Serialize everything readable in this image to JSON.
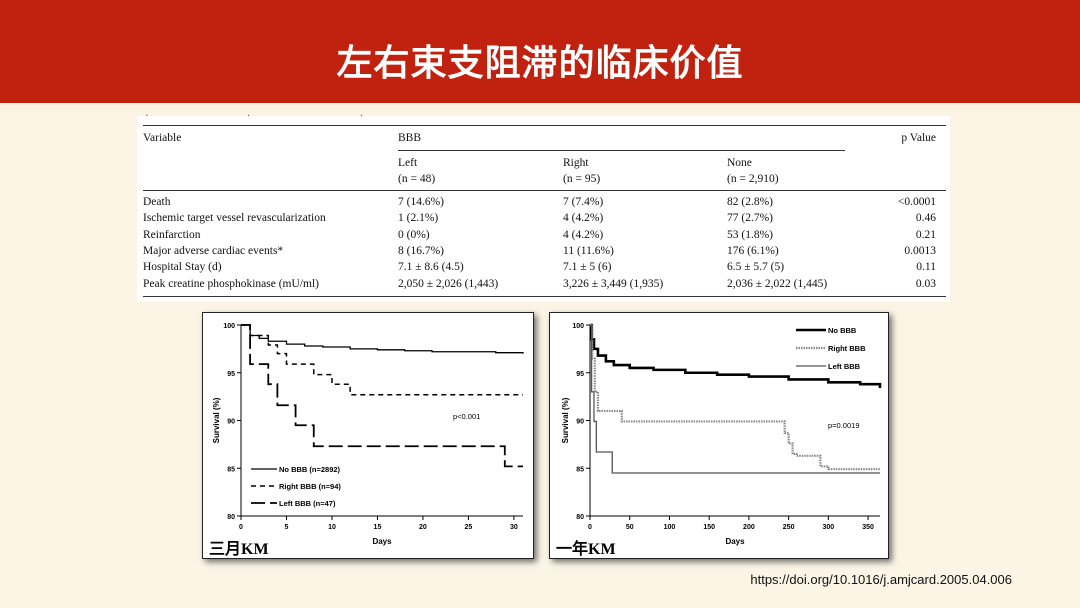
{
  "title": "左右束支阻滞的临床价值",
  "table": {
    "columns": {
      "variable": "Variable",
      "group": "BBB",
      "pvalue": "p Value",
      "left": "Left",
      "left_n": "(n = 48)",
      "right": "Right",
      "right_n": "(n = 95)",
      "none": "None",
      "none_n": "(n = 2,910)"
    },
    "rows": [
      {
        "variable": "Death",
        "left": "7 (14.6%)",
        "right": "7 (7.4%)",
        "none": "82 (2.8%)",
        "p": "<0.0001"
      },
      {
        "variable": "Ischemic target vessel revascularization",
        "left": "1 (2.1%)",
        "right": "4 (4.2%)",
        "none": "77 (2.7%)",
        "p": "0.46"
      },
      {
        "variable": "Reinfarction",
        "left": "0 (0%)",
        "right": "4 (4.2%)",
        "none": "53 (1.8%)",
        "p": "0.21"
      },
      {
        "variable": "Major adverse cardiac events*",
        "left": "8 (16.7%)",
        "right": "11 (11.6%)",
        "none": "176 (6.1%)",
        "p": "0.0013"
      },
      {
        "variable": "Hospital Stay (d)",
        "left": "7.1 ± 8.6 (4.5)",
        "right": "7.1 ± 5 (6)",
        "none": "6.5 ± 5.7 (5)",
        "p": "0.11"
      },
      {
        "variable": "Peak creatine phosphokinase (mU/ml)",
        "left": "2,050 ± 2,026 (1,443)",
        "right": "3,226 ± 3,449 (1,935)",
        "none": "2,036 ± 2,022 (1,445)",
        "p": "0.03"
      }
    ]
  },
  "chart_data": [
    {
      "type": "line",
      "caption": "三月KM",
      "xlabel": "Days",
      "ylabel": "Survival (%)",
      "xlim": [
        0,
        31
      ],
      "ylim": [
        80,
        100
      ],
      "xticks": [
        0,
        5,
        10,
        15,
        20,
        25,
        30
      ],
      "yticks": [
        80,
        85,
        90,
        95,
        100
      ],
      "annotation": "p<0.001",
      "legend_position": "bottom-left",
      "series": [
        {
          "name": "No BBB (n=2892)",
          "style": "solid",
          "color": "#000000",
          "x": [
            0,
            1,
            2,
            3,
            5,
            7,
            9,
            12,
            15,
            18,
            21,
            25,
            28,
            30,
            31
          ],
          "y": [
            100,
            98.9,
            98.6,
            98.3,
            98.0,
            97.8,
            97.7,
            97.5,
            97.4,
            97.3,
            97.2,
            97.2,
            97.1,
            97.1,
            97.0
          ]
        },
        {
          "name": "Right BBB (n=94)",
          "style": "dashed",
          "color": "#000000",
          "x": [
            0,
            1,
            2,
            3,
            4,
            5,
            6,
            7,
            8,
            9,
            10,
            11,
            12,
            31
          ],
          "y": [
            100,
            98.9,
            98.9,
            97.9,
            97.0,
            95.9,
            95.9,
            95.9,
            94.8,
            94.8,
            93.8,
            93.8,
            92.7,
            92.7
          ]
        },
        {
          "name": "Left BBB (n=47)",
          "style": "longdash",
          "color": "#000000",
          "x": [
            0,
            1,
            2,
            3,
            4,
            5,
            6,
            7,
            8,
            20,
            24,
            29,
            30,
            31
          ],
          "y": [
            100,
            95.9,
            95.9,
            93.8,
            91.6,
            91.6,
            89.5,
            89.5,
            87.3,
            87.3,
            87.3,
            85.2,
            85.2,
            85.2
          ]
        }
      ]
    },
    {
      "type": "line",
      "caption": "一年KM",
      "xlabel": "Days",
      "ylabel": "Survival (%)",
      "xlim": [
        0,
        365
      ],
      "ylim": [
        80,
        100
      ],
      "xticks": [
        0,
        50,
        100,
        150,
        200,
        250,
        300,
        350
      ],
      "yticks": [
        80,
        85,
        90,
        95,
        100
      ],
      "annotation": "p=0.0019",
      "legend_position": "top-right",
      "series": [
        {
          "name": "No BBB",
          "style": "thick",
          "color": "#000000",
          "x": [
            0,
            2,
            5,
            10,
            20,
            30,
            50,
            80,
            120,
            160,
            200,
            250,
            300,
            340,
            360,
            365
          ],
          "y": [
            100,
            98.5,
            97.5,
            96.8,
            96.2,
            95.8,
            95.5,
            95.3,
            95.0,
            94.8,
            94.6,
            94.3,
            94.0,
            93.8,
            93.8,
            93.4
          ]
        },
        {
          "name": "Right BBB",
          "style": "dotted-gray",
          "color": "#888888",
          "x": [
            0,
            3,
            6,
            10,
            40,
            100,
            240,
            245,
            250,
            255,
            260,
            290,
            300,
            365
          ],
          "y": [
            100,
            96.5,
            93.0,
            91.0,
            89.9,
            89.9,
            89.9,
            88.7,
            87.6,
            86.5,
            86.3,
            85.2,
            84.9,
            84.9
          ]
        },
        {
          "name": "Left BBB",
          "style": "solid-gray",
          "color": "#555555",
          "x": [
            0,
            2,
            5,
            8,
            25,
            28,
            365
          ],
          "y": [
            100,
            93.0,
            89.9,
            86.7,
            86.7,
            84.5,
            84.5
          ]
        }
      ]
    }
  ],
  "source_link": "https://doi.org/10.1016/j.amjcard.2005.04.006"
}
